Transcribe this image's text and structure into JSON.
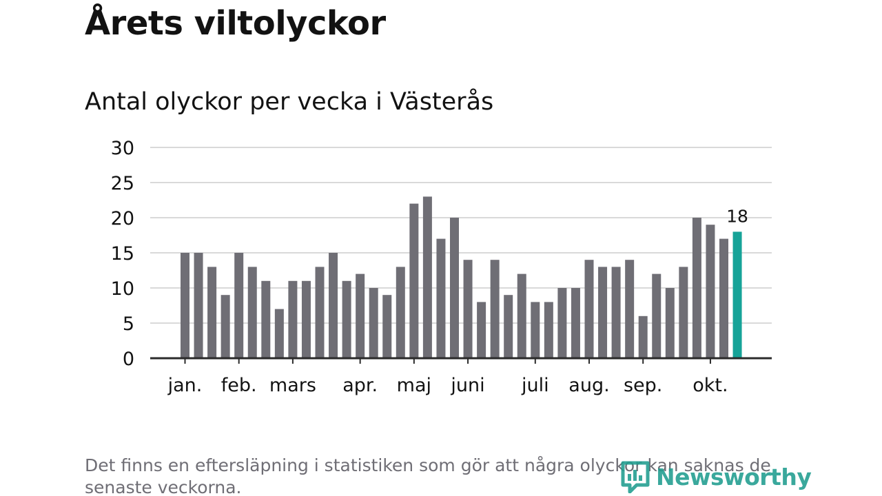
{
  "title": "Årets viltolyckor",
  "subtitle": "Antal olyckor per vecka i Västerås",
  "footnote": "Det finns en eftersläpning i statistiken som gör att några olyckor kan saknas de senaste veckorna.",
  "logo": {
    "text": "Newsworthy",
    "icon": "newsworthy-logo-icon"
  },
  "colors": {
    "bar": "#6f6e75",
    "highlight": "#16a398",
    "grid": "#d9d9d9",
    "axis": "#2b2b2b",
    "text": "#121212",
    "logo": "#1f9d8f"
  },
  "chart_data": {
    "type": "bar",
    "title": "Antal olyckor per vecka i Västerås",
    "xlabel": "",
    "ylabel": "",
    "ylim": [
      0,
      30
    ],
    "yticks": [
      "0",
      "5",
      "10",
      "15",
      "20",
      "25",
      "30"
    ],
    "grid": true,
    "values": [
      15,
      15,
      13,
      9,
      15,
      13,
      11,
      7,
      11,
      11,
      13,
      15,
      11,
      12,
      10,
      9,
      13,
      22,
      23,
      17,
      20,
      14,
      8,
      14,
      9,
      12,
      8,
      8,
      10,
      10,
      14,
      13,
      13,
      14,
      6,
      12,
      10,
      13,
      20,
      19,
      17,
      18
    ],
    "month_labels": [
      {
        "label": "jan.",
        "week": 0
      },
      {
        "label": "feb.",
        "week": 4
      },
      {
        "label": "mars",
        "week": 8
      },
      {
        "label": "apr.",
        "week": 13
      },
      {
        "label": "maj",
        "week": 17
      },
      {
        "label": "juni",
        "week": 21
      },
      {
        "label": "juli",
        "week": 26
      },
      {
        "label": "aug.",
        "week": 30
      },
      {
        "label": "sep.",
        "week": 34
      },
      {
        "label": "okt.",
        "week": 39
      }
    ],
    "highlight_index": 41,
    "annotation": {
      "text": "18",
      "index": 41
    }
  }
}
